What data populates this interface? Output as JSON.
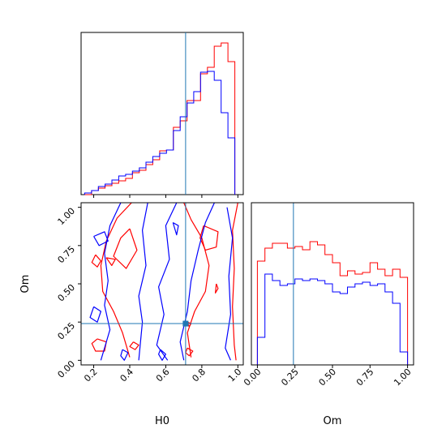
{
  "chart_data": {
    "type": "corner",
    "parameters": [
      "H0",
      "Om"
    ],
    "truths": {
      "H0": 0.71,
      "Om": 0.24
    },
    "truth_color": "#1f77b4",
    "series_colors": [
      "#ff0000",
      "#0000ff"
    ],
    "panels": [
      {
        "id": "H0-marginal",
        "type": "histogram",
        "xlim": [
          0.13,
          1.03
        ],
        "ylim": [
          0,
          1
        ],
        "xticks": [
          0.2,
          0.4,
          0.6,
          0.8,
          1.0
        ],
        "show_tick_labels": false,
        "bin_edges": [
          0.15,
          0.188,
          0.226,
          0.263,
          0.301,
          0.339,
          0.377,
          0.415,
          0.453,
          0.49,
          0.528,
          0.566,
          0.604,
          0.642,
          0.68,
          0.718,
          0.755,
          0.793,
          0.831,
          0.869,
          0.907,
          0.945,
          0.983
        ],
        "series": [
          {
            "color": "#ff0000",
            "values": [
              0.0,
              0.025,
              0.04,
              0.055,
              0.07,
              0.085,
              0.1,
              0.135,
              0.15,
              0.185,
              0.215,
              0.27,
              0.275,
              0.415,
              0.455,
              0.58,
              0.58,
              0.745,
              0.785,
              0.915,
              0.935,
              0.82,
              0.0
            ]
          },
          {
            "color": "#0000ff",
            "values": [
              0.01,
              0.025,
              0.05,
              0.065,
              0.09,
              0.115,
              0.125,
              0.145,
              0.165,
              0.2,
              0.235,
              0.255,
              0.275,
              0.395,
              0.48,
              0.565,
              0.635,
              0.755,
              0.76,
              0.705,
              0.505,
              0.35,
              0.0
            ]
          }
        ]
      },
      {
        "id": "Om-marginal",
        "type": "histogram",
        "xlim": [
          -0.04,
          1.04
        ],
        "ylim": [
          0,
          1
        ],
        "xticks": [
          0.0,
          0.25,
          0.5,
          0.75,
          1.0
        ],
        "xticklabels": [
          "0.00",
          "0.25",
          "0.50",
          "0.75",
          "1.00"
        ],
        "xlabel": "Om",
        "bin_edges": [
          0.0,
          0.05,
          0.1,
          0.15,
          0.2,
          0.25,
          0.3,
          0.35,
          0.4,
          0.45,
          0.5,
          0.55,
          0.6,
          0.65,
          0.7,
          0.75,
          0.8,
          0.85,
          0.9,
          0.95,
          1.0
        ],
        "series": [
          {
            "color": "#ff0000",
            "values": [
              0.64,
              0.72,
              0.75,
              0.75,
              0.72,
              0.73,
              0.71,
              0.76,
              0.74,
              0.68,
              0.63,
              0.55,
              0.58,
              0.56,
              0.57,
              0.63,
              0.59,
              0.55,
              0.59,
              0.54
            ]
          },
          {
            "color": "#0000ff",
            "values": [
              0.17,
              0.56,
              0.52,
              0.49,
              0.5,
              0.53,
              0.52,
              0.53,
              0.52,
              0.5,
              0.45,
              0.44,
              0.48,
              0.5,
              0.51,
              0.49,
              0.5,
              0.45,
              0.38,
              0.08
            ]
          }
        ]
      },
      {
        "id": "H0-Om-contour",
        "type": "contour",
        "xlim": [
          0.13,
          1.03
        ],
        "ylim": [
          -0.03,
          1.03
        ],
        "xticks": [
          0.2,
          0.4,
          0.6,
          0.8,
          1.0
        ],
        "xticklabels": [
          "0.2",
          "0.4",
          "0.6",
          "0.8",
          "1.0"
        ],
        "yticks": [
          0.0,
          0.25,
          0.5,
          0.75,
          1.0
        ],
        "yticklabels": [
          "0.00",
          "0.25",
          "0.50",
          "0.75",
          "1.00"
        ],
        "xlabel": "H0",
        "ylabel": "Om",
        "series": [
          {
            "color": "#ff0000",
            "contours": [
              [
                [
                  0.41,
                  1.03
                ],
                [
                  0.33,
                  0.93
                ],
                [
                  0.27,
                  0.78
                ],
                [
                  0.24,
                  0.62
                ],
                [
                  0.25,
                  0.45
                ],
                [
                  0.31,
                  0.32
                ],
                [
                  0.36,
                  0.18
                ],
                [
                  0.4,
                  0.02
                ]
              ],
              [
                [
                  0.7,
                  1.03
                ],
                [
                  0.74,
                  0.92
                ],
                [
                  0.8,
                  0.8
                ],
                [
                  0.84,
                  0.62
                ],
                [
                  0.82,
                  0.45
                ],
                [
                  0.76,
                  0.32
                ],
                [
                  0.72,
                  0.18
                ],
                [
                  0.74,
                  0.02
                ]
              ],
              [
                [
                  1.0,
                  1.03
                ],
                [
                  0.97,
                  0.85
                ],
                [
                  0.98,
                  0.6
                ],
                [
                  0.97,
                  0.35
                ],
                [
                  0.98,
                  0.1
                ],
                [
                  0.99,
                  0.0
                ]
              ],
              [
                [
                  0.4,
                  0.86
                ],
                [
                  0.44,
                  0.72
                ],
                [
                  0.38,
                  0.6
                ],
                [
                  0.31,
                  0.68
                ],
                [
                  0.35,
                  0.8
                ],
                [
                  0.4,
                  0.86
                ]
              ],
              [
                [
                  0.81,
                  0.88
                ],
                [
                  0.89,
                  0.84
                ],
                [
                  0.88,
                  0.74
                ],
                [
                  0.82,
                  0.72
                ],
                [
                  0.79,
                  0.8
                ],
                [
                  0.81,
                  0.88
                ]
              ],
              [
                [
                  0.21,
                  0.69
                ],
                [
                  0.24,
                  0.65
                ],
                [
                  0.22,
                  0.61
                ],
                [
                  0.19,
                  0.64
                ],
                [
                  0.21,
                  0.69
                ]
              ],
              [
                [
                  0.27,
                  0.67
                ],
                [
                  0.32,
                  0.66
                ],
                [
                  0.3,
                  0.62
                ],
                [
                  0.27,
                  0.67
                ]
              ],
              [
                [
                  0.22,
                  0.14
                ],
                [
                  0.27,
                  0.12
                ],
                [
                  0.26,
                  0.06
                ],
                [
                  0.21,
                  0.06
                ],
                [
                  0.19,
                  0.11
                ],
                [
                  0.22,
                  0.14
                ]
              ],
              [
                [
                  0.42,
                  0.12
                ],
                [
                  0.45,
                  0.1
                ],
                [
                  0.43,
                  0.07
                ],
                [
                  0.4,
                  0.09
                ],
                [
                  0.42,
                  0.12
                ]
              ],
              [
                [
                  0.72,
                  0.08
                ],
                [
                  0.75,
                  0.06
                ],
                [
                  0.73,
                  0.03
                ],
                [
                  0.71,
                  0.05
                ],
                [
                  0.72,
                  0.08
                ]
              ],
              [
                [
                  0.72,
                  0.25
                ],
                [
                  0.74,
                  0.24
                ],
                [
                  0.73,
                  0.22
                ],
                [
                  0.72,
                  0.25
                ]
              ],
              [
                [
                  0.88,
                  0.5
                ],
                [
                  0.89,
                  0.47
                ],
                [
                  0.875,
                  0.44
                ],
                [
                  0.88,
                  0.5
                ]
              ]
            ]
          },
          {
            "color": "#0000ff",
            "contours": [
              [
                [
                  0.35,
                  1.03
                ],
                [
                  0.29,
                  0.88
                ],
                [
                  0.26,
                  0.7
                ],
                [
                  0.28,
                  0.52
                ],
                [
                  0.26,
                  0.36
                ],
                [
                  0.29,
                  0.2
                ],
                [
                  0.24,
                  0.0
                ]
              ],
              [
                [
                  0.5,
                  1.03
                ],
                [
                  0.47,
                  0.85
                ],
                [
                  0.49,
                  0.62
                ],
                [
                  0.45,
                  0.42
                ],
                [
                  0.47,
                  0.25
                ],
                [
                  0.45,
                  0.0
                ]
              ],
              [
                [
                  0.66,
                  1.03
                ],
                [
                  0.6,
                  0.88
                ],
                [
                  0.62,
                  0.66
                ],
                [
                  0.56,
                  0.48
                ],
                [
                  0.59,
                  0.3
                ],
                [
                  0.55,
                  0.1
                ],
                [
                  0.61,
                  0.0
                ]
              ],
              [
                [
                  0.87,
                  1.03
                ],
                [
                  0.82,
                  0.9
                ],
                [
                  0.78,
                  0.72
                ],
                [
                  0.74,
                  0.52
                ],
                [
                  0.72,
                  0.32
                ],
                [
                  0.68,
                  0.12
                ],
                [
                  0.7,
                  0.0
                ]
              ],
              [
                [
                  0.94,
                  1.0
                ],
                [
                  0.97,
                  0.8
                ],
                [
                  0.95,
                  0.55
                ],
                [
                  0.96,
                  0.3
                ],
                [
                  0.93,
                  0.08
                ],
                [
                  0.96,
                  0.0
                ]
              ],
              [
                [
                  0.2,
                  0.81
                ],
                [
                  0.26,
                  0.84
                ],
                [
                  0.28,
                  0.78
                ],
                [
                  0.23,
                  0.75
                ],
                [
                  0.2,
                  0.81
                ]
              ],
              [
                [
                  0.2,
                  0.35
                ],
                [
                  0.24,
                  0.32
                ],
                [
                  0.22,
                  0.25
                ],
                [
                  0.18,
                  0.28
                ],
                [
                  0.2,
                  0.35
                ]
              ],
              [
                [
                  0.36,
                  0.07
                ],
                [
                  0.39,
                  0.05
                ],
                [
                  0.37,
                  0.0
                ],
                [
                  0.35,
                  0.03
                ],
                [
                  0.36,
                  0.07
                ]
              ],
              [
                [
                  0.57,
                  0.07
                ],
                [
                  0.6,
                  0.04
                ],
                [
                  0.58,
                  0.0
                ],
                [
                  0.56,
                  0.04
                ],
                [
                  0.57,
                  0.07
                ]
              ],
              [
                [
                  0.64,
                  0.9
                ],
                [
                  0.67,
                  0.88
                ],
                [
                  0.66,
                  0.82
                ],
                [
                  0.64,
                  0.9
                ]
              ]
            ]
          }
        ]
      }
    ]
  }
}
